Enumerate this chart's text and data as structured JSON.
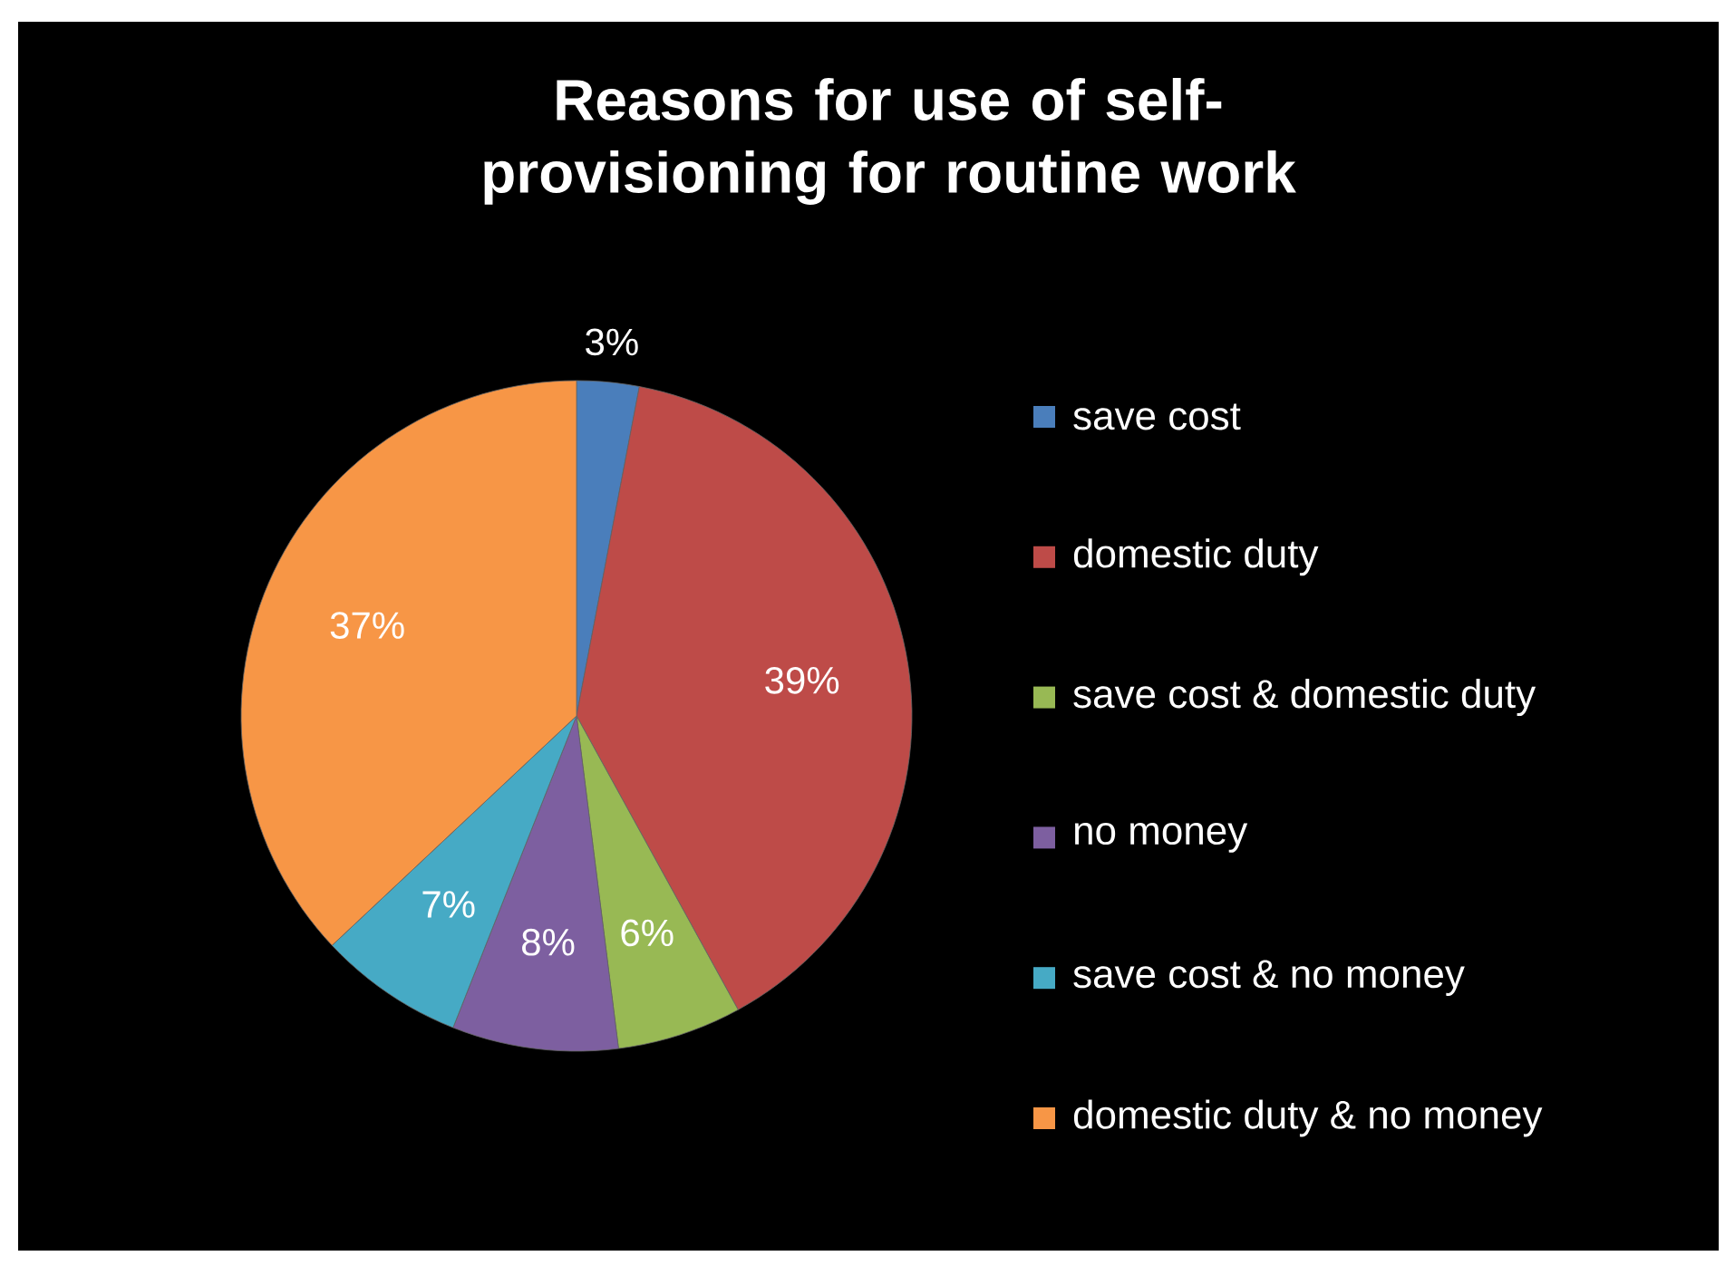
{
  "chart_data": {
    "type": "pie",
    "title": "Reasons for use of self-provisioning for routine work",
    "categories": [
      "save cost",
      "domestic duty",
      "save cost & domestic duty",
      "no money",
      "save cost & no money",
      "domestic duty & no money"
    ],
    "values": [
      3,
      39,
      6,
      8,
      7,
      37
    ],
    "value_labels": [
      "3%",
      "39%",
      "6%",
      "8%",
      "7%",
      "37%"
    ],
    "colors": [
      "#4a7ebb",
      "#be4b48",
      "#98b954",
      "#7d5fa0",
      "#46aac5",
      "#f79646"
    ],
    "legend": "right"
  }
}
